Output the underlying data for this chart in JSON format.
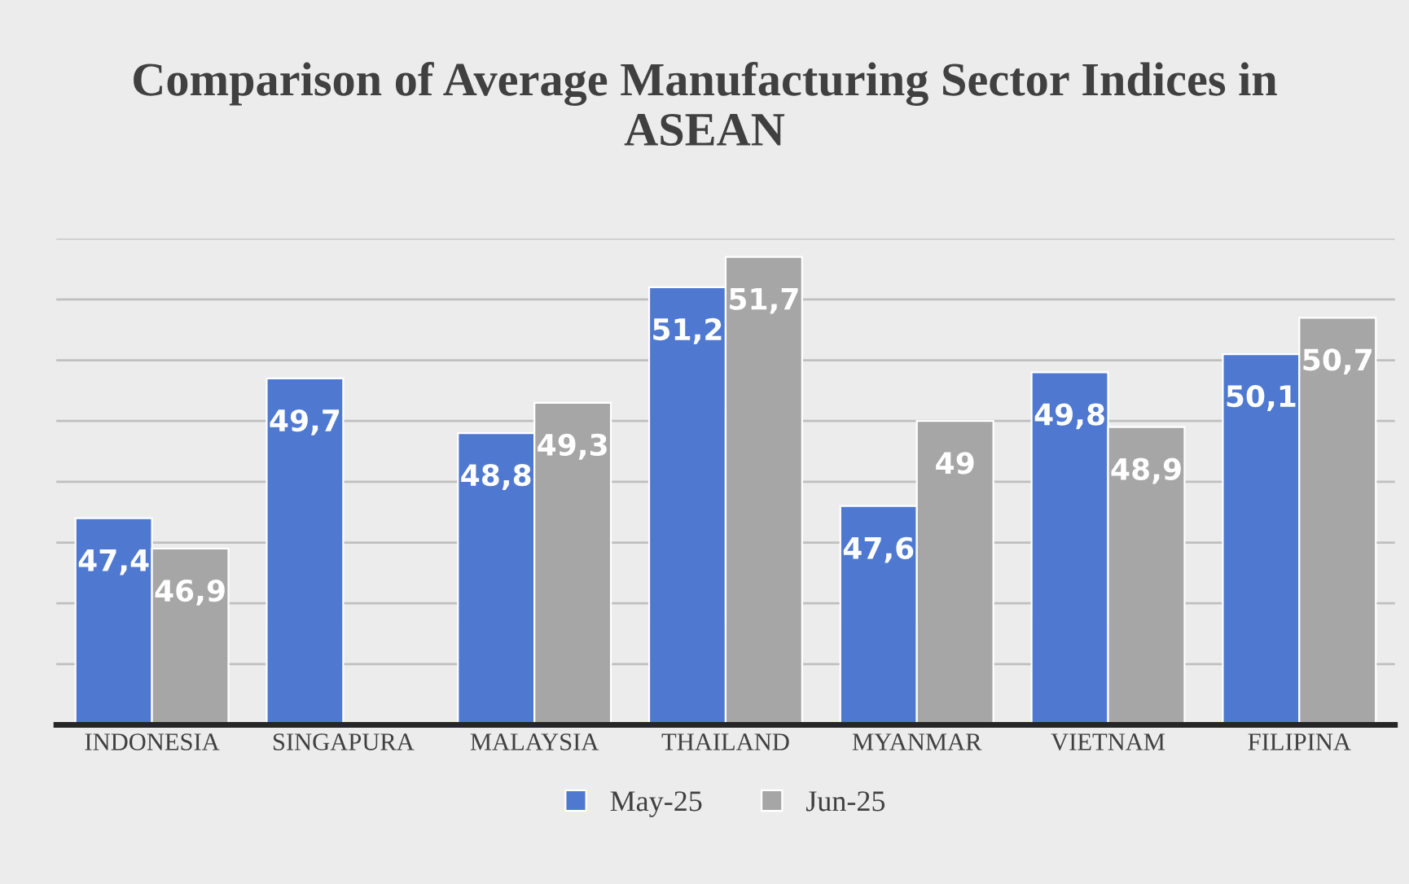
{
  "chart_data": {
    "type": "bar",
    "title": "Comparison of Average Manufacturing Sector Indices in ASEAN",
    "categories": [
      "INDONESIA",
      "SINGAPURA",
      "MALAYSIA",
      "THAILAND",
      "MYANMAR",
      "VIETNAM",
      "FILIPINA"
    ],
    "series": [
      {
        "name": "May-25",
        "color": "#4f79d0",
        "values": [
          47.4,
          49.7,
          48.8,
          51.2,
          47.6,
          49.8,
          50.1
        ],
        "value_labels": [
          "47,4",
          "49,7",
          "48,8",
          "51,2",
          "47,6",
          "49,8",
          "50,1"
        ]
      },
      {
        "name": "Jun-25",
        "color": "#a6a6a6",
        "values": [
          46.9,
          null,
          49.3,
          51.7,
          49,
          48.9,
          50.7
        ],
        "value_labels": [
          "46,9",
          null,
          "49,3",
          "51,7",
          "49",
          "48,9",
          "50,7"
        ]
      }
    ],
    "ylim": [
      44,
      52
    ],
    "yticks": [
      {
        "value": 44,
        "label": null
      },
      {
        "value": 45,
        "label": null
      },
      {
        "value": 46,
        "label": null
      },
      {
        "value": 47,
        "label": null
      },
      {
        "value": 48,
        "label": null
      },
      {
        "value": 49,
        "label": null
      },
      {
        "value": 50,
        "label": null
      },
      {
        "value": 51,
        "label": null
      },
      {
        "value": 52,
        "label": null
      }
    ],
    "tick_labels": "x",
    "grid": "y",
    "legend": "bottom"
  }
}
